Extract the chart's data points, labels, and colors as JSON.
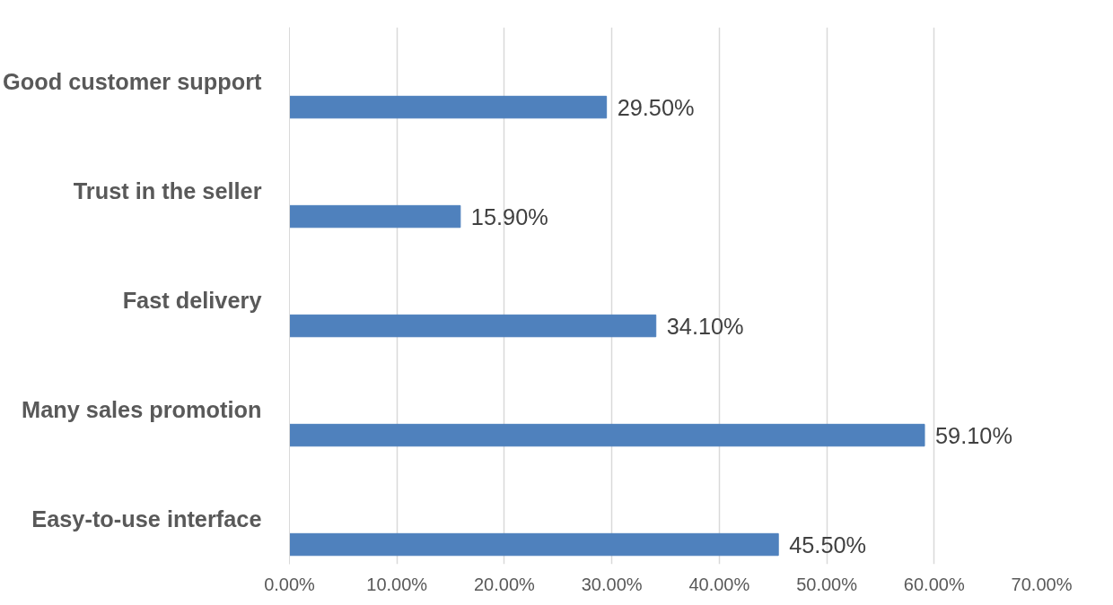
{
  "chart_data": {
    "type": "bar",
    "orientation": "horizontal",
    "categories": [
      "Good customer support",
      "Trust in the seller",
      "Fast delivery",
      "Many sales promotion",
      "Easy-to-use interface"
    ],
    "values": [
      29.5,
      15.9,
      34.1,
      59.1,
      45.5
    ],
    "value_labels": [
      "29.50%",
      "15.90%",
      "34.10%",
      "59.10%",
      "45.50%"
    ],
    "color": "#4f81bd",
    "xlim": [
      0,
      70
    ],
    "xticks": [
      {
        "value": 0,
        "label": "0.00%"
      },
      {
        "value": 10,
        "label": "10.00%"
      },
      {
        "value": 20,
        "label": "20.00%"
      },
      {
        "value": 30,
        "label": "30.00%"
      },
      {
        "value": 40,
        "label": "40.00%"
      },
      {
        "value": 50,
        "label": "50.00%"
      },
      {
        "value": 60,
        "label": "60.00%"
      },
      {
        "value": 70,
        "label": "70.00%"
      }
    ],
    "grid": "x"
  }
}
